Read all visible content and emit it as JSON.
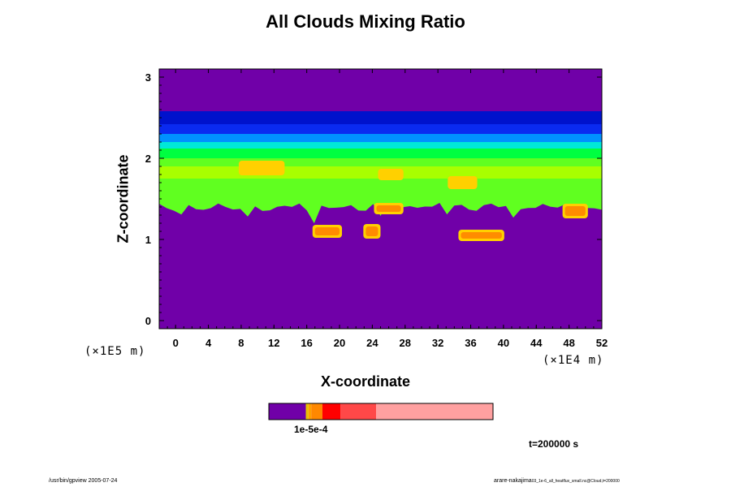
{
  "chart_data": {
    "type": "heatmap",
    "title": "All Clouds Mixing Ratio",
    "xlabel": "X-coordinate",
    "ylabel": "Z-coordinate",
    "x_scale_note": "(×1E4 m)",
    "y_scale_note": "(×1E5 m)",
    "xlim": [
      -2,
      52
    ],
    "ylim": [
      -0.1,
      3.1
    ],
    "x_ticks": [
      0,
      4,
      8,
      12,
      16,
      20,
      24,
      28,
      32,
      36,
      40,
      44,
      48,
      52
    ],
    "y_ticks": [
      0,
      1,
      2,
      3
    ],
    "background_color": "#7000a8",
    "layers": [
      {
        "name": "dark blue band",
        "color": "#0012cc",
        "z_range": [
          2.42,
          2.58
        ]
      },
      {
        "name": "blue band",
        "color": "#0a2af0",
        "z_range": [
          2.3,
          2.42
        ]
      },
      {
        "name": "sky band",
        "color": "#0090ff",
        "z_range": [
          2.2,
          2.3
        ]
      },
      {
        "name": "cyan band",
        "color": "#00e8d8",
        "z_range": [
          2.12,
          2.2
        ]
      },
      {
        "name": "green band",
        "color": "#00ff40",
        "z_range": [
          2.0,
          2.12
        ]
      },
      {
        "name": "light green band",
        "color": "#60ff20",
        "z_range": [
          1.4,
          2.0
        ]
      },
      {
        "name": "yellow-green band",
        "color": "#a8ff00",
        "z_range": [
          1.75,
          1.9
        ]
      }
    ],
    "hot_spots": [
      {
        "x": 8.0,
        "z": 1.88,
        "w": 5.0,
        "h": 0.12,
        "color": "#ffd000"
      },
      {
        "x": 17.0,
        "z": 1.1,
        "w": 3.0,
        "h": 0.1,
        "color": "#ff8c00"
      },
      {
        "x": 24.5,
        "z": 1.38,
        "w": 3.0,
        "h": 0.08,
        "color": "#ff8c00"
      },
      {
        "x": 34.8,
        "z": 1.05,
        "w": 5.0,
        "h": 0.08,
        "color": "#ff8c00"
      },
      {
        "x": 33.5,
        "z": 1.7,
        "w": 3.0,
        "h": 0.1,
        "color": "#ffd000"
      },
      {
        "x": 47.5,
        "z": 1.35,
        "w": 2.5,
        "h": 0.12,
        "color": "#ff8c00"
      },
      {
        "x": 23.2,
        "z": 1.1,
        "w": 1.5,
        "h": 0.12,
        "color": "#ff8c00"
      },
      {
        "x": 25.0,
        "z": 1.8,
        "w": 2.5,
        "h": 0.08,
        "color": "#ffd000"
      }
    ],
    "colorbar": {
      "segments": [
        {
          "color": "#7000a8",
          "fraction": 0.165
        },
        {
          "color": "#e8c000",
          "fraction": 0.012
        },
        {
          "color": "#ffa000",
          "fraction": 0.012
        },
        {
          "color": "#ff8800",
          "fraction": 0.05
        },
        {
          "color": "#ff0000",
          "fraction": 0.08
        },
        {
          "color": "#ff4848",
          "fraction": 0.16
        },
        {
          "color": "#ffa0a0",
          "fraction": 0.521
        }
      ],
      "labels": "1e-5e-4"
    },
    "time_label": "t=200000 s"
  },
  "footer": {
    "left": "/usr/bin/gpview 2005-07-24",
    "right_main": "arare-nakajima",
    "right_small": "03_1e-6_all_heatflux_small.nc@Cloud,t=200000"
  }
}
